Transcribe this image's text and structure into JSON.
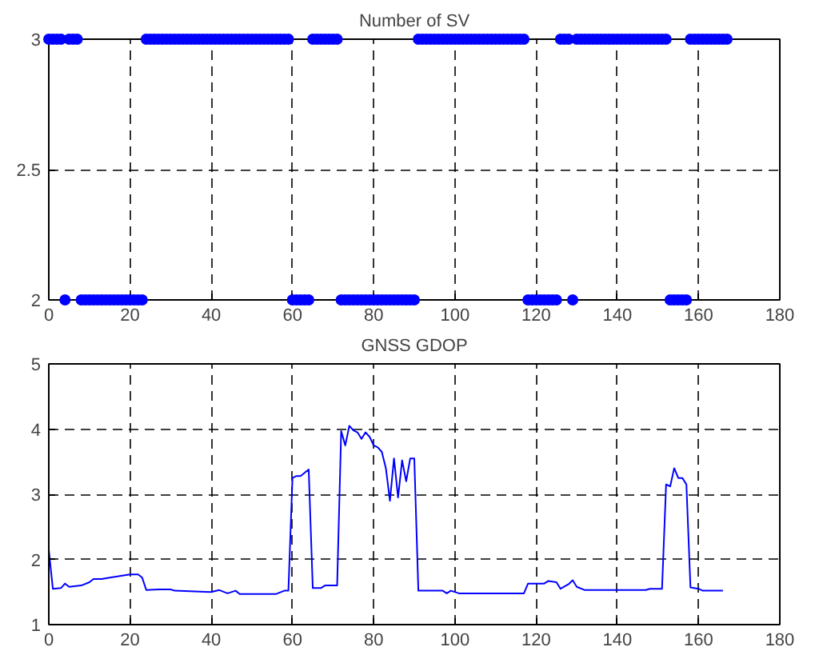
{
  "chart_data": [
    {
      "type": "scatter",
      "title": "Number of SV",
      "color": "#0000ff",
      "marker": "circle",
      "x": [
        0,
        1,
        2,
        3,
        4,
        5,
        6,
        7,
        8,
        9,
        10,
        11,
        12,
        13,
        14,
        15,
        16,
        17,
        18,
        19,
        20,
        21,
        22,
        23,
        24,
        25,
        26,
        27,
        28,
        29,
        30,
        31,
        32,
        33,
        34,
        35,
        36,
        37,
        38,
        39,
        40,
        41,
        42,
        43,
        44,
        45,
        46,
        47,
        48,
        49,
        50,
        51,
        52,
        53,
        54,
        55,
        56,
        57,
        58,
        59,
        60,
        61,
        62,
        63,
        64,
        65,
        66,
        67,
        68,
        69,
        70,
        71,
        72,
        73,
        74,
        75,
        76,
        77,
        78,
        79,
        80,
        81,
        82,
        83,
        84,
        85,
        86,
        87,
        88,
        89,
        90,
        91,
        92,
        93,
        94,
        95,
        96,
        97,
        98,
        99,
        100,
        101,
        102,
        103,
        104,
        105,
        106,
        107,
        108,
        109,
        110,
        111,
        112,
        113,
        114,
        115,
        116,
        117,
        118,
        119,
        120,
        121,
        122,
        123,
        124,
        125,
        126,
        127,
        128,
        129,
        130,
        131,
        132,
        133,
        134,
        135,
        136,
        137,
        138,
        139,
        140,
        141,
        142,
        143,
        144,
        145,
        146,
        147,
        148,
        149,
        150,
        151,
        152,
        153,
        154,
        155,
        156,
        157,
        158,
        159,
        160,
        161,
        162,
        163,
        164,
        165,
        166,
        167
      ],
      "values": [
        3,
        3,
        3,
        3,
        2,
        3,
        3,
        3,
        2,
        2,
        2,
        2,
        2,
        2,
        2,
        2,
        2,
        2,
        2,
        2,
        2,
        2,
        2,
        2,
        3,
        3,
        3,
        3,
        3,
        3,
        3,
        3,
        3,
        3,
        3,
        3,
        3,
        3,
        3,
        3,
        3,
        3,
        3,
        3,
        3,
        3,
        3,
        3,
        3,
        3,
        3,
        3,
        3,
        3,
        3,
        3,
        3,
        3,
        3,
        3,
        2,
        2,
        2,
        2,
        2,
        3,
        3,
        3,
        3,
        3,
        3,
        3,
        2,
        2,
        2,
        2,
        2,
        2,
        2,
        2,
        2,
        2,
        2,
        2,
        2,
        2,
        2,
        2,
        2,
        2,
        2,
        3,
        3,
        3,
        3,
        3,
        3,
        3,
        3,
        3,
        3,
        3,
        3,
        3,
        3,
        3,
        3,
        3,
        3,
        3,
        3,
        3,
        3,
        3,
        3,
        3,
        3,
        3,
        2,
        2,
        2,
        2,
        2,
        2,
        2,
        2,
        3,
        3,
        3,
        2,
        3,
        3,
        3,
        3,
        3,
        3,
        3,
        3,
        3,
        3,
        3,
        3,
        3,
        3,
        3,
        3,
        3,
        3,
        3,
        3,
        3,
        3,
        3,
        2,
        2,
        2,
        2,
        2,
        3,
        3,
        3,
        3,
        3,
        3,
        3,
        3,
        3,
        3
      ],
      "xlim": [
        0,
        180
      ],
      "ylim": [
        2,
        3
      ],
      "xticks": [
        0,
        20,
        40,
        60,
        80,
        100,
        120,
        140,
        160,
        180
      ],
      "yticks": [
        2,
        2.5,
        3
      ],
      "grid": true
    },
    {
      "type": "line",
      "title": "GNSS GDOP",
      "color": "#0000ff",
      "line_style": "solid",
      "x": [
        0,
        1,
        3,
        4,
        5,
        8,
        10,
        11,
        13,
        15,
        20,
        22,
        23,
        24,
        27,
        30,
        31,
        40,
        42,
        44,
        46,
        47,
        56,
        58,
        59,
        60,
        61,
        62,
        64,
        65,
        67,
        68,
        71,
        72,
        73,
        74,
        75,
        76,
        77,
        78,
        79,
        80,
        81,
        82,
        83,
        84,
        85,
        86,
        87,
        88,
        89,
        90,
        91,
        97,
        98,
        99,
        101,
        117,
        118,
        122,
        123,
        125,
        126,
        128,
        129,
        130,
        132,
        147,
        148,
        151,
        152,
        153,
        154,
        155,
        156,
        157,
        158,
        160,
        161,
        166
      ],
      "values": [
        2.15,
        1.55,
        1.56,
        1.63,
        1.58,
        1.6,
        1.65,
        1.7,
        1.7,
        1.72,
        1.77,
        1.77,
        1.72,
        1.53,
        1.54,
        1.54,
        1.52,
        1.5,
        1.53,
        1.48,
        1.52,
        1.47,
        1.47,
        1.52,
        1.52,
        3.25,
        3.28,
        3.28,
        3.38,
        1.56,
        1.56,
        1.6,
        1.6,
        3.97,
        3.75,
        4.05,
        3.98,
        3.95,
        3.85,
        3.95,
        3.88,
        3.75,
        3.72,
        3.65,
        3.4,
        2.9,
        3.55,
        2.95,
        3.52,
        3.2,
        3.55,
        3.55,
        1.52,
        1.52,
        1.48,
        1.52,
        1.48,
        1.48,
        1.63,
        1.63,
        1.67,
        1.65,
        1.55,
        1.62,
        1.68,
        1.58,
        1.53,
        1.53,
        1.55,
        1.55,
        3.15,
        3.12,
        3.4,
        3.25,
        3.25,
        3.15,
        1.57,
        1.55,
        1.52,
        1.52
      ],
      "xlim": [
        0,
        180
      ],
      "ylim": [
        1,
        5
      ],
      "xticks": [
        0,
        20,
        40,
        60,
        80,
        100,
        120,
        140,
        160,
        180
      ],
      "yticks": [
        1,
        2,
        3,
        4,
        5
      ],
      "grid": true
    }
  ]
}
